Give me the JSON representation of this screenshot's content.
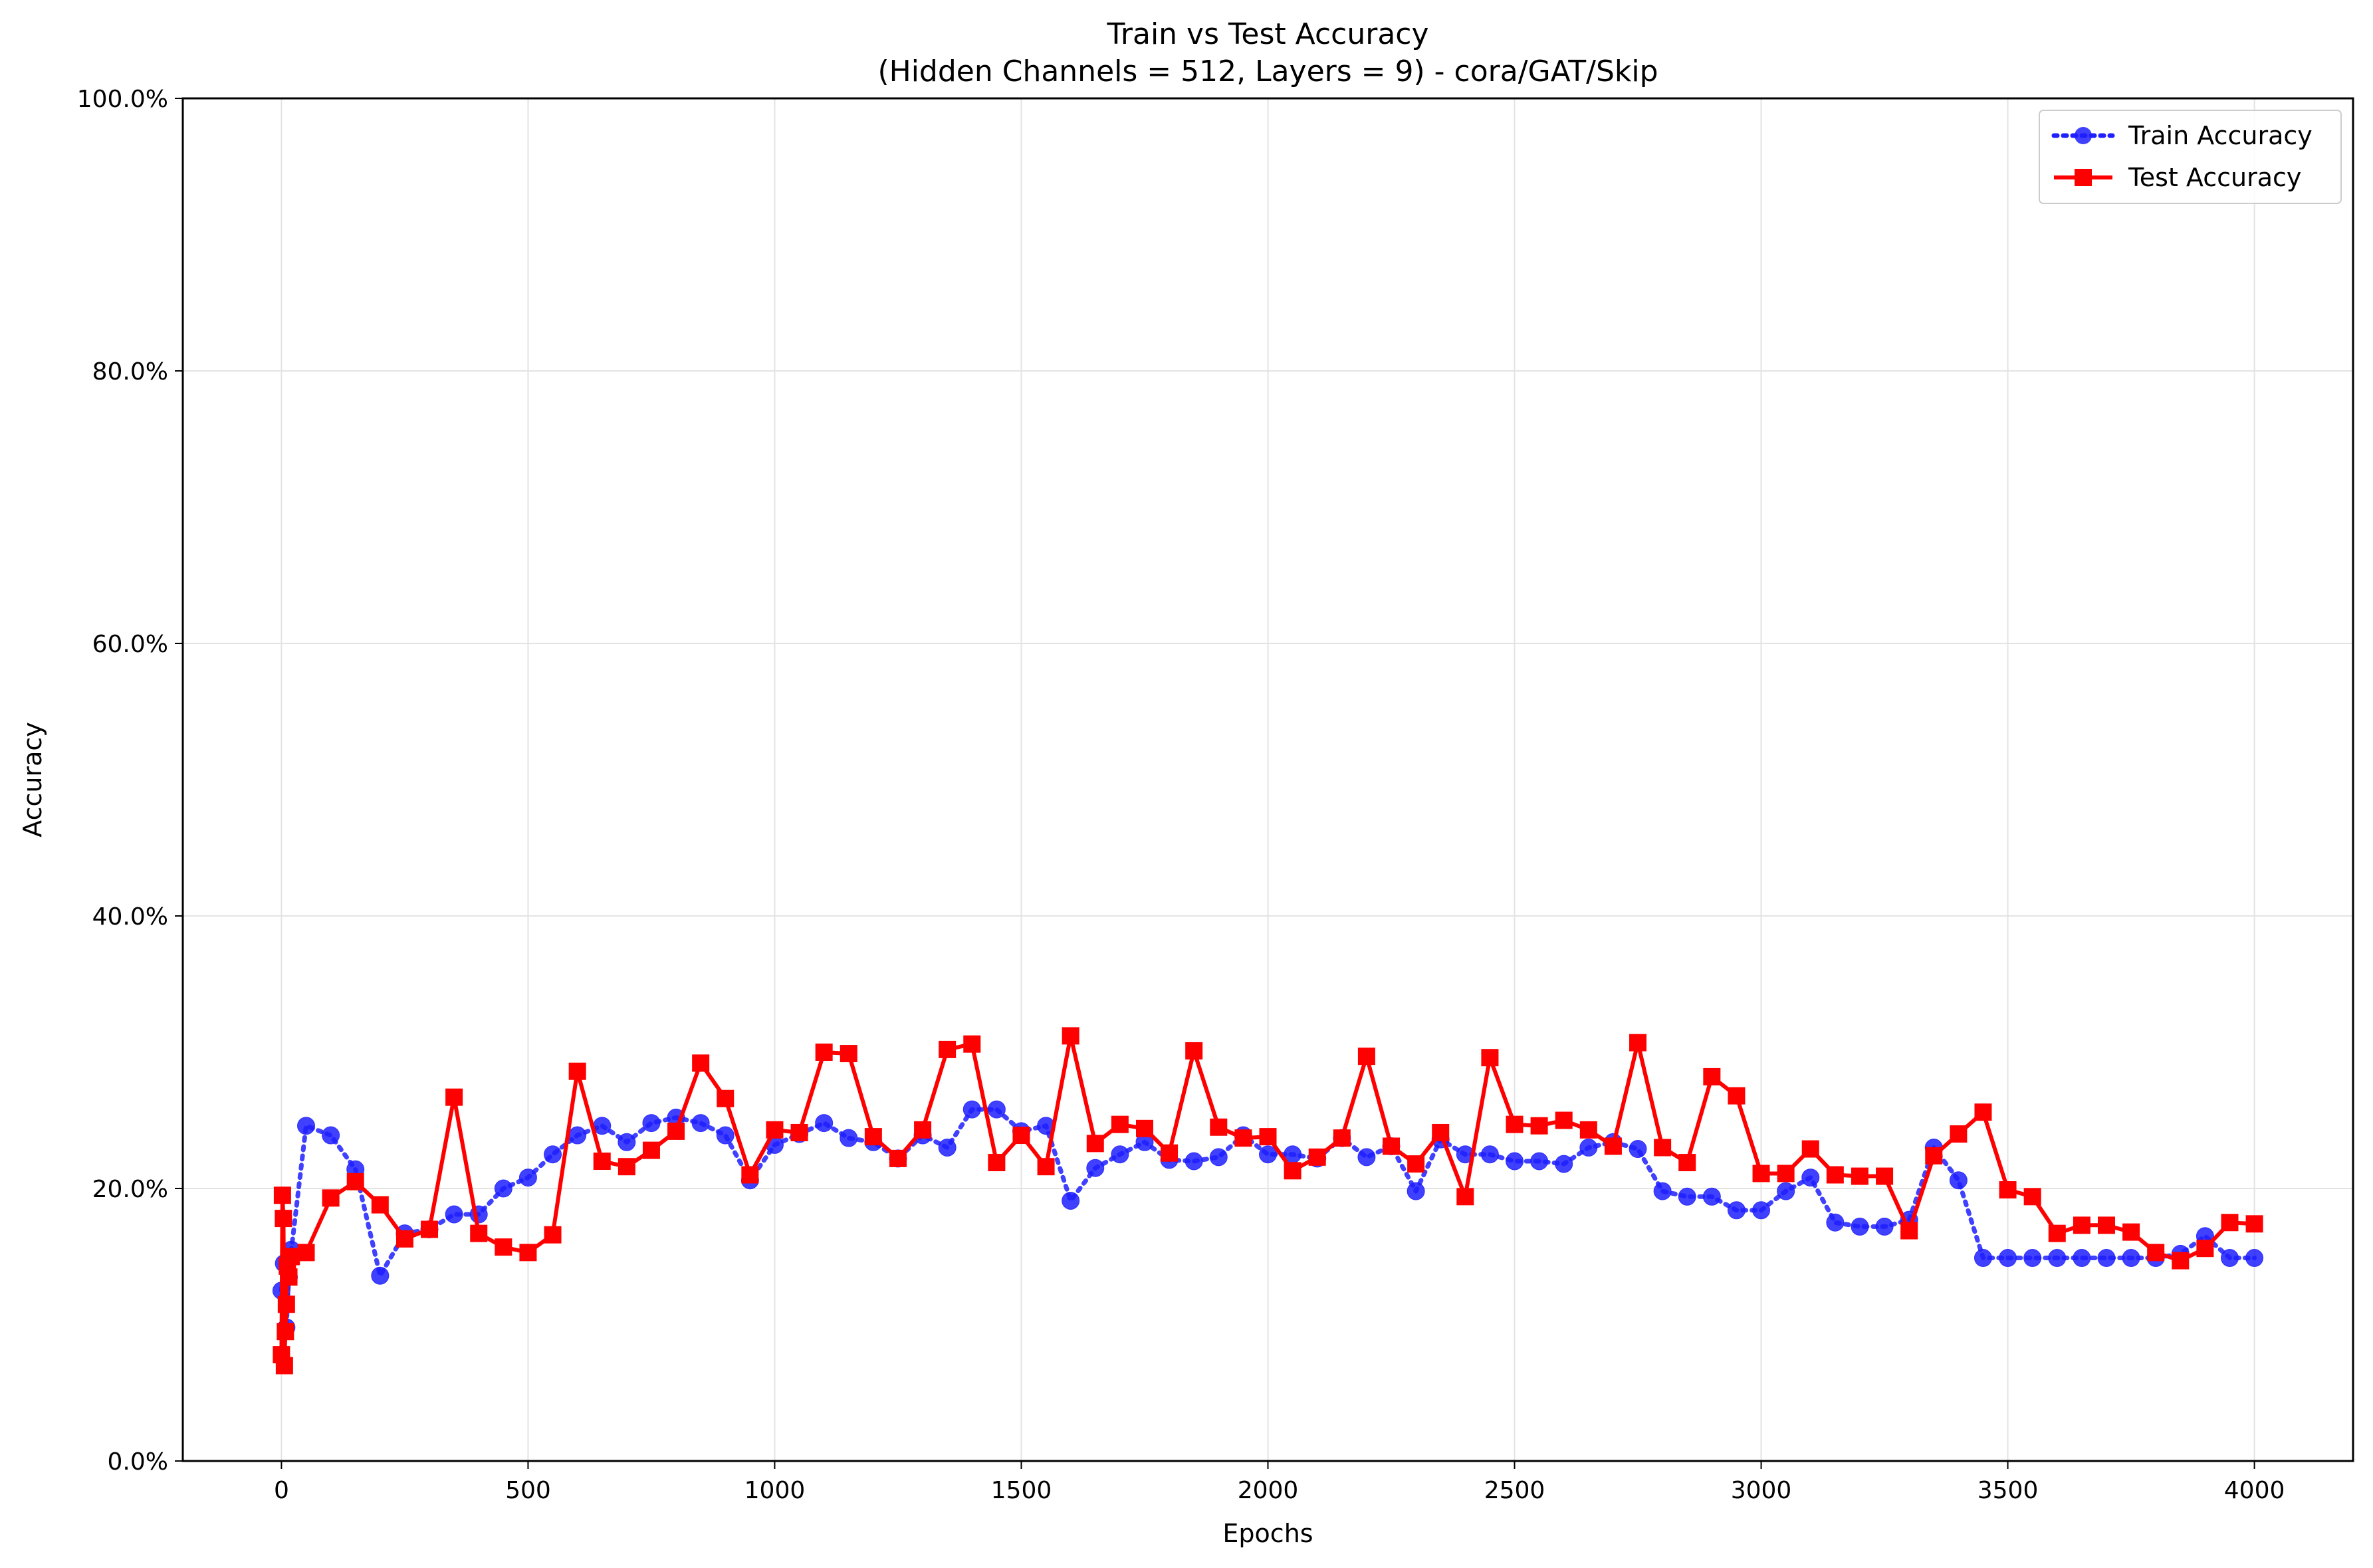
{
  "chart_data": {
    "type": "line",
    "title": "Train vs Test Accuracy",
    "subtitle": "(Hidden Channels = 512, Layers = 9) - cora/GAT/Skip",
    "xlabel": "Epochs",
    "ylabel": "Accuracy",
    "xlim": [
      -200,
      4200
    ],
    "ylim": [
      0,
      1
    ],
    "x_ticks": [
      0,
      500,
      1000,
      1500,
      2000,
      2500,
      3000,
      3500,
      4000
    ],
    "x_tick_labels": [
      "0",
      "500",
      "1000",
      "1500",
      "2000",
      "2500",
      "3000",
      "3500",
      "4000"
    ],
    "y_ticks": [
      0,
      0.2,
      0.4,
      0.6,
      0.8,
      1.0
    ],
    "y_tick_labels": [
      "0.0%",
      "20.0%",
      "40.0%",
      "60.0%",
      "80.0%",
      "100.0%"
    ],
    "grid": true,
    "legend_position": "top-right",
    "series": [
      {
        "name": "Train Accuracy",
        "color": "#1f1fff",
        "style": "dotted",
        "marker": "circle",
        "x": [
          0,
          5,
          10,
          15,
          20,
          50,
          100,
          150,
          200,
          250,
          300,
          350,
          400,
          450,
          500,
          550,
          600,
          650,
          700,
          750,
          800,
          850,
          900,
          950,
          1000,
          1050,
          1100,
          1150,
          1200,
          1250,
          1300,
          1350,
          1400,
          1450,
          1500,
          1550,
          1600,
          1650,
          1700,
          1750,
          1800,
          1850,
          1900,
          1950,
          2000,
          2050,
          2100,
          2150,
          2200,
          2250,
          2300,
          2350,
          2400,
          2450,
          2500,
          2550,
          2600,
          2650,
          2700,
          2750,
          2800,
          2850,
          2900,
          2950,
          3000,
          3050,
          3100,
          3150,
          3200,
          3250,
          3300,
          3350,
          3400,
          3450,
          3500,
          3550,
          3600,
          3650,
          3700,
          3750,
          3800,
          3850,
          3900,
          3950,
          4000
        ],
        "y": [
          0.125,
          0.145,
          0.098,
          0.135,
          0.155,
          0.246,
          0.239,
          0.214,
          0.136,
          0.167,
          0.17,
          0.181,
          0.181,
          0.2,
          0.208,
          0.225,
          0.239,
          0.246,
          0.234,
          0.248,
          0.252,
          0.248,
          0.239,
          0.206,
          0.232,
          0.24,
          0.248,
          0.237,
          0.234,
          0.222,
          0.239,
          0.23,
          0.258,
          0.258,
          0.242,
          0.246,
          0.191,
          0.215,
          0.225,
          0.234,
          0.221,
          0.22,
          0.223,
          0.239,
          0.225,
          0.225,
          0.222,
          0.237,
          0.223,
          0.231,
          0.198,
          0.236,
          0.225,
          0.225,
          0.22,
          0.22,
          0.218,
          0.23,
          0.234,
          0.229,
          0.198,
          0.194,
          0.194,
          0.184,
          0.184,
          0.198,
          0.208,
          0.175,
          0.172,
          0.172,
          0.177,
          0.23,
          0.206,
          0.149,
          0.149,
          0.149,
          0.149,
          0.149,
          0.149,
          0.149,
          0.149,
          0.152,
          0.165,
          0.149,
          0.149
        ]
      },
      {
        "name": "Test Accuracy",
        "color": "#ff0000",
        "style": "solid",
        "marker": "square",
        "x": [
          0,
          2,
          4,
          6,
          8,
          10,
          12,
          15,
          20,
          50,
          100,
          150,
          200,
          250,
          300,
          350,
          400,
          450,
          500,
          550,
          600,
          650,
          700,
          750,
          800,
          850,
          900,
          950,
          1000,
          1050,
          1100,
          1150,
          1200,
          1250,
          1300,
          1350,
          1400,
          1450,
          1500,
          1550,
          1600,
          1650,
          1700,
          1750,
          1800,
          1850,
          1900,
          1950,
          2000,
          2050,
          2100,
          2150,
          2200,
          2250,
          2300,
          2350,
          2400,
          2450,
          2500,
          2550,
          2600,
          2650,
          2700,
          2750,
          2800,
          2850,
          2900,
          2950,
          3000,
          3050,
          3100,
          3150,
          3200,
          3250,
          3300,
          3350,
          3400,
          3450,
          3500,
          3550,
          3600,
          3650,
          3700,
          3750,
          3800,
          3850,
          3900,
          3950,
          4000
        ],
        "y": [
          0.078,
          0.195,
          0.178,
          0.07,
          0.095,
          0.115,
          0.143,
          0.135,
          0.15,
          0.153,
          0.193,
          0.205,
          0.188,
          0.163,
          0.17,
          0.267,
          0.167,
          0.157,
          0.153,
          0.166,
          0.286,
          0.22,
          0.216,
          0.228,
          0.242,
          0.292,
          0.266,
          0.21,
          0.243,
          0.241,
          0.3,
          0.299,
          0.238,
          0.222,
          0.243,
          0.302,
          0.306,
          0.219,
          0.239,
          0.216,
          0.312,
          0.233,
          0.247,
          0.244,
          0.226,
          0.301,
          0.245,
          0.237,
          0.238,
          0.213,
          0.223,
          0.237,
          0.297,
          0.231,
          0.218,
          0.241,
          0.194,
          0.296,
          0.247,
          0.246,
          0.25,
          0.243,
          0.231,
          0.307,
          0.23,
          0.219,
          0.282,
          0.268,
          0.211,
          0.211,
          0.229,
          0.21,
          0.209,
          0.209,
          0.169,
          0.224,
          0.24,
          0.256,
          0.199,
          0.194,
          0.167,
          0.173,
          0.173,
          0.168,
          0.153,
          0.147,
          0.156,
          0.175,
          0.174
        ]
      }
    ]
  }
}
